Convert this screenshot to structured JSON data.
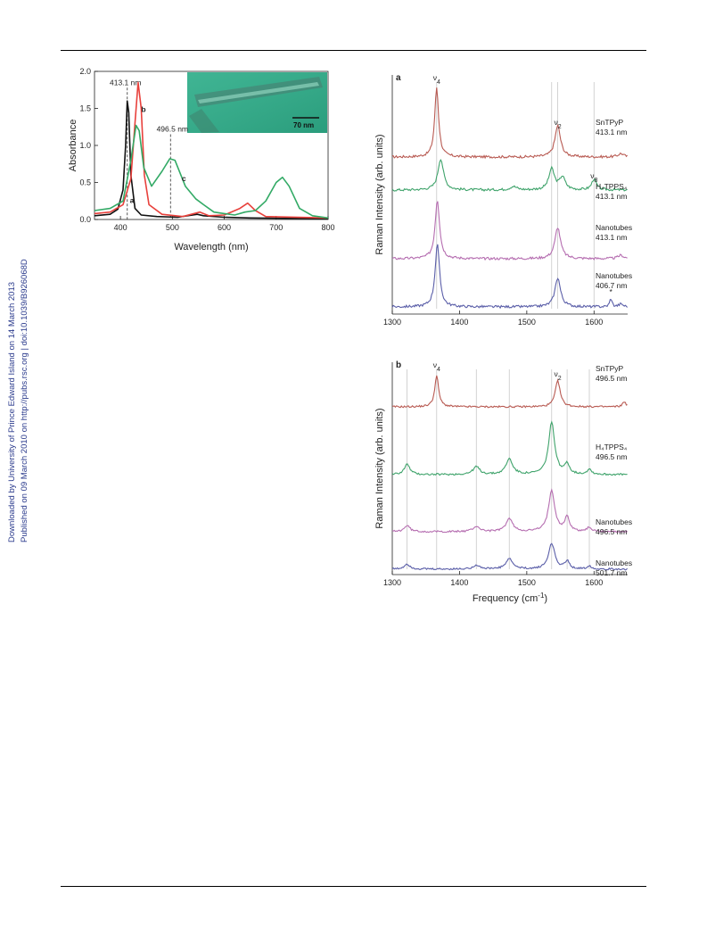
{
  "side_note": {
    "line1": "Downloaded by University of Prince Edward Island on 14 March 2013",
    "line2": "Published on 09 March 2010 on http://pubs.rsc.org | doi:10.1039/B926068D"
  },
  "absorbance_chart": {
    "chart_data": {
      "type": "line",
      "xlabel": "Wavelength (nm)",
      "ylabel": "Absorbance",
      "xlim": [
        350,
        800
      ],
      "ylim": [
        0,
        2.0
      ],
      "xticks": [
        400,
        500,
        600,
        700,
        800
      ],
      "yticks": [
        0.0,
        0.5,
        1.0,
        1.5,
        2.0
      ],
      "annotations": [
        {
          "text": "413.1 nm",
          "x": 413.1
        },
        {
          "text": "496.5 nm",
          "x": 496.5
        }
      ],
      "inset_scale_label": "70 nm",
      "series": [
        {
          "name": "a",
          "color": "#111111",
          "points": [
            [
              350,
              0.05
            ],
            [
              380,
              0.07
            ],
            [
              395,
              0.14
            ],
            [
              405,
              0.4
            ],
            [
              410,
              1.0
            ],
            [
              413,
              1.6
            ],
            [
              416,
              1.45
            ],
            [
              420,
              0.6
            ],
            [
              428,
              0.15
            ],
            [
              440,
              0.06
            ],
            [
              470,
              0.04
            ],
            [
              510,
              0.03
            ],
            [
              548,
              0.07
            ],
            [
              560,
              0.05
            ],
            [
              600,
              0.03
            ],
            [
              650,
              0.02
            ],
            [
              800,
              0.01
            ]
          ]
        },
        {
          "name": "b",
          "color": "#e8413c",
          "points": [
            [
              350,
              0.08
            ],
            [
              380,
              0.1
            ],
            [
              405,
              0.2
            ],
            [
              420,
              0.55
            ],
            [
              428,
              1.3
            ],
            [
              434,
              1.85
            ],
            [
              440,
              1.5
            ],
            [
              446,
              0.6
            ],
            [
              455,
              0.2
            ],
            [
              480,
              0.07
            ],
            [
              520,
              0.04
            ],
            [
              553,
              0.1
            ],
            [
              570,
              0.05
            ],
            [
              600,
              0.06
            ],
            [
              630,
              0.15
            ],
            [
              645,
              0.22
            ],
            [
              660,
              0.12
            ],
            [
              680,
              0.04
            ],
            [
              800,
              0.02
            ]
          ]
        },
        {
          "name": "c",
          "color": "#33aa66",
          "points": [
            [
              350,
              0.12
            ],
            [
              380,
              0.15
            ],
            [
              405,
              0.25
            ],
            [
              420,
              0.8
            ],
            [
              430,
              1.27
            ],
            [
              436,
              1.2
            ],
            [
              445,
              0.7
            ],
            [
              460,
              0.45
            ],
            [
              480,
              0.65
            ],
            [
              495,
              0.82
            ],
            [
              505,
              0.8
            ],
            [
              525,
              0.45
            ],
            [
              545,
              0.28
            ],
            [
              560,
              0.2
            ],
            [
              580,
              0.1
            ],
            [
              600,
              0.08
            ],
            [
              620,
              0.06
            ],
            [
              640,
              0.1
            ],
            [
              660,
              0.12
            ],
            [
              680,
              0.25
            ],
            [
              700,
              0.5
            ],
            [
              712,
              0.57
            ],
            [
              725,
              0.45
            ],
            [
              745,
              0.15
            ],
            [
              770,
              0.05
            ],
            [
              800,
              0.02
            ]
          ]
        }
      ]
    }
  },
  "raman_chart_a": {
    "chart_data": {
      "type": "line",
      "panel_label": "a",
      "xlabel": "",
      "ylabel": "Raman Intensity  (arb. units)",
      "xlim": [
        1300,
        1650
      ],
      "xticks": [
        1300,
        1400,
        1500,
        1600
      ],
      "peak_labels": [
        {
          "text": "ν4",
          "x": 1366
        },
        {
          "text": "ν2",
          "x": 1546
        },
        {
          "text": "ν8",
          "x": 1600
        },
        {
          "text": "*",
          "x": 1625
        }
      ],
      "guide_lines_x": [
        1366,
        1537,
        1546,
        1600
      ],
      "series": [
        {
          "name": "SnTPyP",
          "sublabel": "413.1 nm",
          "color": "#b85a52",
          "peaks": [
            [
              1366,
              1.0,
              3.5
            ],
            [
              1546,
              0.45,
              5
            ],
            [
              1640,
              0.05,
              5
            ]
          ]
        },
        {
          "name": "H4TPPS4",
          "sublabel": "413.1 nm",
          "color": "#3fa36b",
          "peaks": [
            [
              1372,
              0.45,
              5
            ],
            [
              1480,
              0.05,
              6
            ],
            [
              1537,
              0.3,
              5
            ],
            [
              1553,
              0.18,
              5
            ],
            [
              1600,
              0.16,
              4
            ]
          ]
        },
        {
          "name": "Nanotubes",
          "sublabel": "413.1 nm",
          "color": "#b56db0",
          "peaks": [
            [
              1367,
              0.85,
              4
            ],
            [
              1546,
              0.45,
              5
            ],
            [
              1640,
              0.05,
              5
            ]
          ]
        },
        {
          "name": "Nanotubes",
          "sublabel": "406.7 nm",
          "color": "#5a5ea8",
          "peaks": [
            [
              1367,
              0.9,
              4
            ],
            [
              1546,
              0.42,
              5
            ],
            [
              1625,
              0.12,
              2
            ],
            [
              1640,
              0.04,
              4
            ]
          ]
        }
      ]
    }
  },
  "raman_chart_b": {
    "chart_data": {
      "type": "line",
      "panel_label": "b",
      "xlabel": "Frequency  (cm",
      "xlabel_sup": "-1",
      "xlabel_end": ")",
      "ylabel": "Raman Intensity  (arb. units)",
      "xlim": [
        1300,
        1650
      ],
      "xticks": [
        1300,
        1400,
        1500,
        1600
      ],
      "peak_labels": [
        {
          "text": "ν4",
          "x": 1366
        },
        {
          "text": "ν2",
          "x": 1546
        }
      ],
      "guide_lines_x": [
        1322,
        1366,
        1425,
        1474,
        1537,
        1560,
        1593
      ],
      "series": [
        {
          "name": "SnTPyP",
          "sublabel": "496.5 nm",
          "color": "#b85a52",
          "peaks": [
            [
              1366,
              0.6,
              3.5
            ],
            [
              1546,
              0.5,
              4.5
            ],
            [
              1645,
              0.1,
              3
            ]
          ]
        },
        {
          "name": "H4TPPS4",
          "sublabel": "496.5 nm",
          "color": "#3fa36b",
          "peaks": [
            [
              1322,
              0.2,
              5
            ],
            [
              1425,
              0.15,
              6
            ],
            [
              1474,
              0.3,
              6
            ],
            [
              1537,
              1.0,
              5.5
            ],
            [
              1560,
              0.2,
              4
            ],
            [
              1593,
              0.1,
              4
            ]
          ]
        },
        {
          "name": "Nanotubes",
          "sublabel": "496.5 nm",
          "color": "#b56db0",
          "peaks": [
            [
              1322,
              0.12,
              5
            ],
            [
              1425,
              0.1,
              6
            ],
            [
              1474,
              0.25,
              6
            ],
            [
              1537,
              0.8,
              5.5
            ],
            [
              1560,
              0.28,
              4
            ],
            [
              1593,
              0.08,
              4
            ]
          ]
        },
        {
          "name": "Nanotubes",
          "sublabel": "501.7 nm",
          "color": "#5a5ea8",
          "peaks": [
            [
              1322,
              0.1,
              5
            ],
            [
              1425,
              0.08,
              6
            ],
            [
              1474,
              0.2,
              6
            ],
            [
              1537,
              0.5,
              5.5
            ],
            [
              1560,
              0.15,
              4
            ],
            [
              1593,
              0.06,
              4
            ]
          ]
        }
      ]
    }
  }
}
